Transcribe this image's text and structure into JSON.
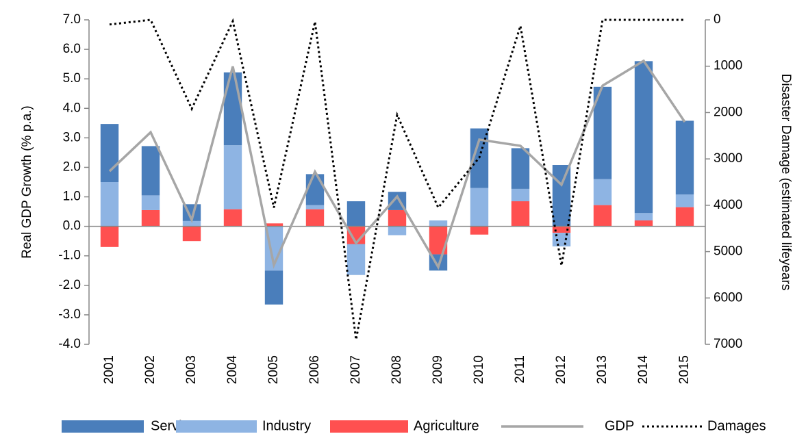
{
  "chart_data": {
    "type": "bar",
    "stacked": true,
    "y_label": "Real GDP Growth (% p.a.)",
    "y2_label": "Disaster Damage (estimated lifeyears",
    "categories": [
      "2001",
      "2002",
      "2003",
      "2004",
      "2005",
      "2006",
      "2007",
      "2008",
      "2009",
      "2010",
      "2011",
      "2012",
      "2013",
      "2014",
      "2015"
    ],
    "series": [
      {
        "name": "Services",
        "type": "bar",
        "color": "#4a7ebb",
        "values": [
          1.97,
          1.67,
          0.57,
          2.47,
          -1.15,
          1.05,
          0.85,
          0.62,
          -0.55,
          2.02,
          1.38,
          2.08,
          3.13,
          5.15,
          2.5
        ]
      },
      {
        "name": "Industry",
        "type": "bar",
        "color": "#8eb4e3",
        "values": [
          1.5,
          0.5,
          0.18,
          2.17,
          -1.5,
          0.14,
          -1.05,
          -0.3,
          0.2,
          1.3,
          0.42,
          -0.46,
          0.88,
          0.25,
          0.43
        ]
      },
      {
        "name": "Agriculture",
        "type": "bar",
        "color": "#ff5050",
        "values": [
          -0.7,
          0.55,
          -0.5,
          0.58,
          0.1,
          0.58,
          -0.6,
          0.55,
          -0.95,
          -0.28,
          0.85,
          -0.22,
          0.72,
          0.2,
          0.65
        ]
      },
      {
        "name": "GDP",
        "type": "line",
        "color": "#a6a6a6",
        "values": [
          1.87,
          3.19,
          0.22,
          5.42,
          -1.31,
          1.85,
          -0.57,
          1.01,
          -1.38,
          2.94,
          2.73,
          1.41,
          4.77,
          5.61,
          3.54
        ]
      },
      {
        "name": "Damages",
        "type": "line",
        "axis": "y2",
        "dashed": true,
        "color": "#000000",
        "values": [
          100,
          0,
          1920,
          30,
          4050,
          40,
          6900,
          2050,
          4050,
          2970,
          130,
          5300,
          0,
          0,
          0
        ]
      }
    ],
    "ylim": [
      -4,
      7
    ],
    "yticks": [
      {
        "value": -4,
        "label": "-4.0"
      },
      {
        "value": -3,
        "label": "-3.0"
      },
      {
        "value": -2,
        "label": "-2.0"
      },
      {
        "value": -1,
        "label": "-1.0"
      },
      {
        "value": 0,
        "label": "0.0"
      },
      {
        "value": 1,
        "label": "1.0"
      },
      {
        "value": 2,
        "label": "2.0"
      },
      {
        "value": 3,
        "label": "3.0"
      },
      {
        "value": 4,
        "label": "4.0"
      },
      {
        "value": 5,
        "label": "5.0"
      },
      {
        "value": 6,
        "label": "6.0"
      },
      {
        "value": 7,
        "label": "7.0"
      }
    ],
    "y2lim": [
      0,
      7000
    ],
    "y2_inverted": true,
    "y2ticks": [
      0,
      1000,
      2000,
      3000,
      4000,
      5000,
      6000,
      7000
    ],
    "legend": "bottom"
  }
}
